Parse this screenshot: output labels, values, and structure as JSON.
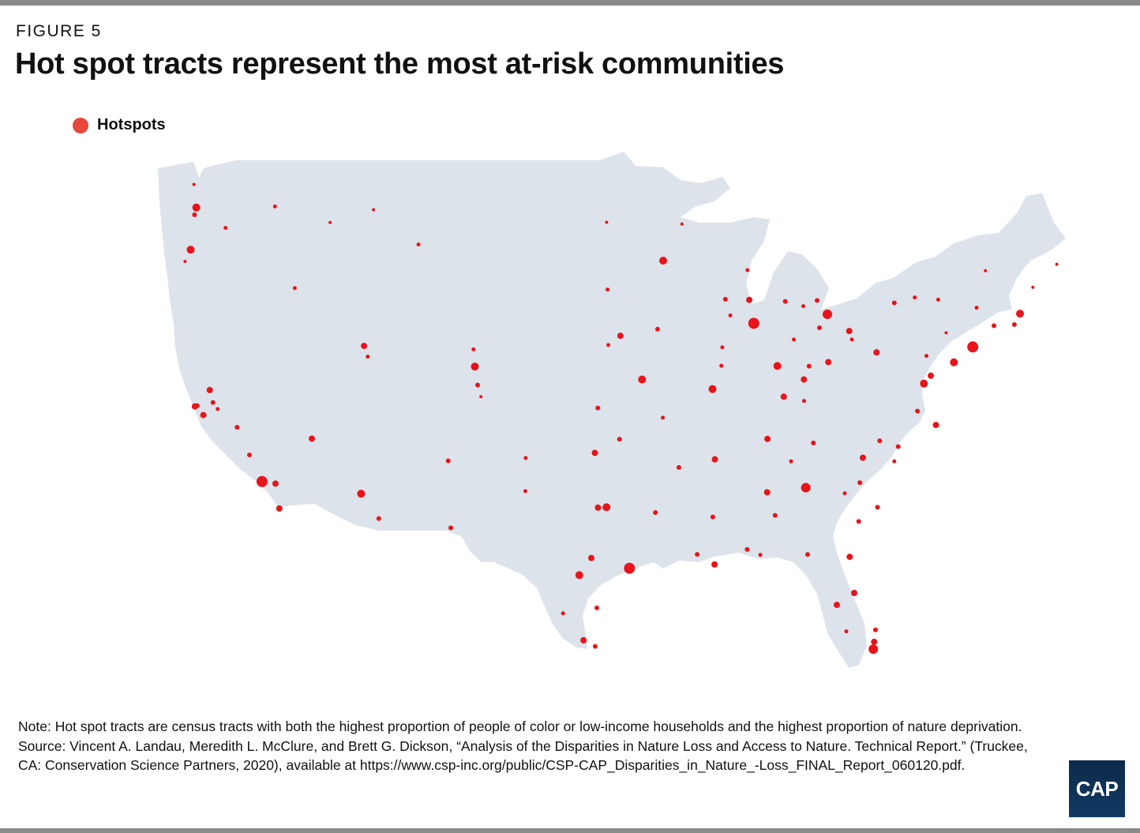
{
  "figure": {
    "label": "FIGURE 5",
    "title": "Hot spot tracts represent the most at-risk communities"
  },
  "legend": {
    "label": "Hotspots",
    "color": "#e8473b"
  },
  "map": {
    "land_color": "#dde3ea",
    "hotspot_color": "#e8141b",
    "hotspot_locations": [
      {
        "name": "Seattle",
        "lon": -122.33,
        "lat": 47.61,
        "r": 5
      },
      {
        "name": "Tacoma",
        "lon": -122.44,
        "lat": 47.25,
        "r": 3
      },
      {
        "name": "Bellingham",
        "lon": -122.48,
        "lat": 48.75,
        "r": 2
      },
      {
        "name": "Portland",
        "lon": -122.68,
        "lat": 45.52,
        "r": 5
      },
      {
        "name": "Salem",
        "lon": -123.03,
        "lat": 44.94,
        "r": 2
      },
      {
        "name": "Yakima",
        "lon": -120.51,
        "lat": 46.6,
        "r": 2.5
      },
      {
        "name": "Spokane",
        "lon": -117.43,
        "lat": 47.66,
        "r": 2.5
      },
      {
        "name": "Boise",
        "lon": -116.2,
        "lat": 43.62,
        "r": 2.5
      },
      {
        "name": "Missoula",
        "lon": -114.0,
        "lat": 46.87,
        "r": 2
      },
      {
        "name": "Great Falls",
        "lon": -111.3,
        "lat": 47.5,
        "r": 2
      },
      {
        "name": "Billings",
        "lon": -108.5,
        "lat": 45.78,
        "r": 2.5
      },
      {
        "name": "Salt Lake City",
        "lon": -111.89,
        "lat": 40.76,
        "r": 4
      },
      {
        "name": "Provo",
        "lon": -111.66,
        "lat": 40.23,
        "r": 2.5
      },
      {
        "name": "Denver",
        "lon": -104.99,
        "lat": 39.74,
        "r": 5
      },
      {
        "name": "Fort Collins",
        "lon": -105.08,
        "lat": 40.59,
        "r": 2.5
      },
      {
        "name": "Colorado Springs",
        "lon": -104.82,
        "lat": 38.83,
        "r": 3
      },
      {
        "name": "Pueblo",
        "lon": -104.61,
        "lat": 38.25,
        "r": 2
      },
      {
        "name": "San Francisco",
        "lon": -122.42,
        "lat": 37.77,
        "r": 4
      },
      {
        "name": "Oakland",
        "lon": -122.27,
        "lat": 37.8,
        "r": 3
      },
      {
        "name": "San Jose",
        "lon": -121.89,
        "lat": 37.34,
        "r": 4
      },
      {
        "name": "Sacramento",
        "lon": -121.49,
        "lat": 38.58,
        "r": 4
      },
      {
        "name": "Stockton",
        "lon": -121.29,
        "lat": 37.96,
        "r": 3
      },
      {
        "name": "Modesto",
        "lon": -121.0,
        "lat": 37.64,
        "r": 2.5
      },
      {
        "name": "Fresno",
        "lon": -119.79,
        "lat": 36.74,
        "r": 3
      },
      {
        "name": "Bakersfield",
        "lon": -119.02,
        "lat": 35.37,
        "r": 3
      },
      {
        "name": "Los Angeles",
        "lon": -118.24,
        "lat": 34.05,
        "r": 7
      },
      {
        "name": "Riverside",
        "lon": -117.4,
        "lat": 33.95,
        "r": 4
      },
      {
        "name": "San Diego",
        "lon": -117.16,
        "lat": 32.72,
        "r": 4
      },
      {
        "name": "Las Vegas",
        "lon": -115.14,
        "lat": 36.17,
        "r": 4
      },
      {
        "name": "Phoenix",
        "lon": -112.07,
        "lat": 33.45,
        "r": 5
      },
      {
        "name": "Tucson",
        "lon": -110.97,
        "lat": 32.22,
        "r": 3
      },
      {
        "name": "Albuquerque",
        "lon": -106.65,
        "lat": 35.08,
        "r": 3
      },
      {
        "name": "El Paso",
        "lon": -106.49,
        "lat": 31.76,
        "r": 3
      },
      {
        "name": "Minneapolis",
        "lon": -93.27,
        "lat": 44.98,
        "r": 5
      },
      {
        "name": "Duluth",
        "lon": -92.1,
        "lat": 46.79,
        "r": 2
      },
      {
        "name": "Fargo",
        "lon": -96.79,
        "lat": 46.88,
        "r": 2
      },
      {
        "name": "Sioux Falls",
        "lon": -96.73,
        "lat": 43.55,
        "r": 2.5
      },
      {
        "name": "Omaha",
        "lon": -95.93,
        "lat": 41.26,
        "r": 4
      },
      {
        "name": "Lincoln",
        "lon": -96.68,
        "lat": 40.81,
        "r": 2.5
      },
      {
        "name": "Des Moines",
        "lon": -93.62,
        "lat": 41.59,
        "r": 3
      },
      {
        "name": "Kansas City",
        "lon": -94.58,
        "lat": 39.1,
        "r": 5
      },
      {
        "name": "Wichita",
        "lon": -97.34,
        "lat": 37.69,
        "r": 3
      },
      {
        "name": "Oklahoma City",
        "lon": -97.52,
        "lat": 35.47,
        "r": 4
      },
      {
        "name": "Tulsa",
        "lon": -95.99,
        "lat": 36.15,
        "r": 3
      },
      {
        "name": "Dallas",
        "lon": -96.8,
        "lat": 32.78,
        "r": 5
      },
      {
        "name": "Fort Worth",
        "lon": -97.33,
        "lat": 32.76,
        "r": 4
      },
      {
        "name": "Austin",
        "lon": -97.74,
        "lat": 30.27,
        "r": 4
      },
      {
        "name": "San Antonio",
        "lon": -98.49,
        "lat": 29.42,
        "r": 5
      },
      {
        "name": "Houston",
        "lon": -95.37,
        "lat": 29.76,
        "r": 7
      },
      {
        "name": "Corpus Christi",
        "lon": -97.4,
        "lat": 27.8,
        "r": 3
      },
      {
        "name": "Laredo",
        "lon": -99.5,
        "lat": 27.53,
        "r": 2.5
      },
      {
        "name": "McAllen",
        "lon": -98.23,
        "lat": 26.2,
        "r": 4
      },
      {
        "name": "Brownsville",
        "lon": -97.5,
        "lat": 25.9,
        "r": 3
      },
      {
        "name": "Lubbock",
        "lon": -101.85,
        "lat": 33.58,
        "r": 2.5
      },
      {
        "name": "Amarillo",
        "lon": -101.83,
        "lat": 35.22,
        "r": 2.5
      },
      {
        "name": "Shreveport",
        "lon": -93.75,
        "lat": 32.52,
        "r": 3
      },
      {
        "name": "Baton Rouge",
        "lon": -91.15,
        "lat": 30.45,
        "r": 3
      },
      {
        "name": "New Orleans",
        "lon": -90.07,
        "lat": 29.95,
        "r": 4
      },
      {
        "name": "Jackson MS",
        "lon": -90.18,
        "lat": 32.3,
        "r": 3
      },
      {
        "name": "Little Rock",
        "lon": -92.29,
        "lat": 34.75,
        "r": 3
      },
      {
        "name": "Memphis",
        "lon": -90.05,
        "lat": 35.15,
        "r": 4
      },
      {
        "name": "Nashville",
        "lon": -86.78,
        "lat": 36.16,
        "r": 4
      },
      {
        "name": "Knoxville",
        "lon": -83.92,
        "lat": 35.96,
        "r": 3
      },
      {
        "name": "Chattanooga",
        "lon": -85.31,
        "lat": 35.05,
        "r": 2.5
      },
      {
        "name": "Birmingham",
        "lon": -86.8,
        "lat": 33.52,
        "r": 4
      },
      {
        "name": "Montgomery",
        "lon": -86.3,
        "lat": 32.38,
        "r": 3
      },
      {
        "name": "Mobile",
        "lon": -88.04,
        "lat": 30.69,
        "r": 3
      },
      {
        "name": "Atlanta",
        "lon": -84.39,
        "lat": 33.75,
        "r": 6
      },
      {
        "name": "Augusta",
        "lon": -81.97,
        "lat": 33.47,
        "r": 2.5
      },
      {
        "name": "Savannah",
        "lon": -81.1,
        "lat": 32.08,
        "r": 3
      },
      {
        "name": "Columbia SC",
        "lon": -81.03,
        "lat": 34.0,
        "r": 3
      },
      {
        "name": "Charleston",
        "lon": -79.93,
        "lat": 32.78,
        "r": 3
      },
      {
        "name": "Charlotte",
        "lon": -80.84,
        "lat": 35.23,
        "r": 4
      },
      {
        "name": "Greensboro",
        "lon": -79.79,
        "lat": 36.07,
        "r": 3
      },
      {
        "name": "Raleigh",
        "lon": -78.64,
        "lat": 35.78,
        "r": 3
      },
      {
        "name": "Fayetteville NC",
        "lon": -78.88,
        "lat": 35.05,
        "r": 2.5
      },
      {
        "name": "Richmond",
        "lon": -77.44,
        "lat": 37.54,
        "r": 3
      },
      {
        "name": "Norfolk",
        "lon": -76.29,
        "lat": 36.85,
        "r": 4
      },
      {
        "name": "Washington DC",
        "lon": -77.04,
        "lat": 38.9,
        "r": 5
      },
      {
        "name": "Baltimore",
        "lon": -76.61,
        "lat": 39.29,
        "r": 4
      },
      {
        "name": "Philadelphia",
        "lon": -75.17,
        "lat": 39.95,
        "r": 5
      },
      {
        "name": "New York",
        "lon": -74.0,
        "lat": 40.71,
        "r": 7
      },
      {
        "name": "Hartford",
        "lon": -72.68,
        "lat": 41.76,
        "r": 3
      },
      {
        "name": "Providence",
        "lon": -71.41,
        "lat": 41.82,
        "r": 3
      },
      {
        "name": "Boston",
        "lon": -71.06,
        "lat": 42.36,
        "r": 5
      },
      {
        "name": "Albany",
        "lon": -73.76,
        "lat": 42.65,
        "r": 2.5
      },
      {
        "name": "Syracuse",
        "lon": -76.15,
        "lat": 43.05,
        "r": 2.5
      },
      {
        "name": "Rochester",
        "lon": -77.61,
        "lat": 43.16,
        "r": 2.5
      },
      {
        "name": "Buffalo",
        "lon": -78.88,
        "lat": 42.89,
        "r": 3
      },
      {
        "name": "Burlington",
        "lon": -73.21,
        "lat": 44.48,
        "r": 2
      },
      {
        "name": "Portland ME",
        "lon": -70.26,
        "lat": 43.66,
        "r": 2
      },
      {
        "name": "Bangor",
        "lon": -68.77,
        "lat": 44.8,
        "r": 2
      },
      {
        "name": "Pittsburgh",
        "lon": -79.99,
        "lat": 40.44,
        "r": 4
      },
      {
        "name": "Harrisburg",
        "lon": -76.88,
        "lat": 40.27,
        "r": 2.5
      },
      {
        "name": "Scranton",
        "lon": -75.66,
        "lat": 41.41,
        "r": 2
      },
      {
        "name": "Cleveland",
        "lon": -81.69,
        "lat": 41.5,
        "r": 4
      },
      {
        "name": "Akron",
        "lon": -81.52,
        "lat": 41.08,
        "r": 2.5
      },
      {
        "name": "Toledo",
        "lon": -83.54,
        "lat": 41.66,
        "r": 3
      },
      {
        "name": "Columbus",
        "lon": -82.99,
        "lat": 39.96,
        "r": 4
      },
      {
        "name": "Dayton",
        "lon": -84.19,
        "lat": 39.76,
        "r": 3
      },
      {
        "name": "Cincinnati",
        "lon": -84.51,
        "lat": 39.1,
        "r": 4
      },
      {
        "name": "Louisville",
        "lon": -85.76,
        "lat": 38.25,
        "r": 4
      },
      {
        "name": "Lexington",
        "lon": -84.5,
        "lat": 38.04,
        "r": 2.5
      },
      {
        "name": "Indianapolis",
        "lon": -86.16,
        "lat": 39.77,
        "r": 5
      },
      {
        "name": "Fort Wayne",
        "lon": -85.14,
        "lat": 41.08,
        "r": 2.5
      },
      {
        "name": "Detroit",
        "lon": -83.05,
        "lat": 42.33,
        "r": 6
      },
      {
        "name": "Flint",
        "lon": -83.69,
        "lat": 43.01,
        "r": 3
      },
      {
        "name": "Lansing",
        "lon": -84.55,
        "lat": 42.73,
        "r": 2.5
      },
      {
        "name": "Grand Rapids",
        "lon": -85.67,
        "lat": 42.96,
        "r": 3
      },
      {
        "name": "Chicago",
        "lon": -87.63,
        "lat": 41.88,
        "r": 7
      },
      {
        "name": "Rockford",
        "lon": -89.09,
        "lat": 42.27,
        "r": 2.5
      },
      {
        "name": "Peoria",
        "lon": -89.59,
        "lat": 40.69,
        "r": 2.5
      },
      {
        "name": "Springfield IL",
        "lon": -89.65,
        "lat": 39.78,
        "r": 2.5
      },
      {
        "name": "Milwaukee",
        "lon": -87.91,
        "lat": 43.04,
        "r": 4
      },
      {
        "name": "Madison",
        "lon": -89.4,
        "lat": 43.07,
        "r": 3
      },
      {
        "name": "Green Bay",
        "lon": -88.02,
        "lat": 44.51,
        "r": 2.5
      },
      {
        "name": "St. Louis",
        "lon": -90.2,
        "lat": 38.63,
        "r": 5
      },
      {
        "name": "Springfield MO",
        "lon": -93.29,
        "lat": 37.21,
        "r": 2.5
      },
      {
        "name": "Jacksonville",
        "lon": -81.66,
        "lat": 30.33,
        "r": 4
      },
      {
        "name": "Tallahassee",
        "lon": -84.28,
        "lat": 30.44,
        "r": 3
      },
      {
        "name": "Orlando",
        "lon": -81.38,
        "lat": 28.54,
        "r": 4
      },
      {
        "name": "Tampa",
        "lon": -82.46,
        "lat": 27.95,
        "r": 4
      },
      {
        "name": "West Palm Beach",
        "lon": -80.05,
        "lat": 26.71,
        "r": 3
      },
      {
        "name": "Fort Lauderdale",
        "lon": -80.14,
        "lat": 26.12,
        "r": 4
      },
      {
        "name": "Miami",
        "lon": -80.19,
        "lat": 25.76,
        "r": 6
      },
      {
        "name": "Fort Myers",
        "lon": -81.87,
        "lat": 26.64,
        "r": 2.5
      },
      {
        "name": "Pensacola",
        "lon": -87.22,
        "lat": 30.42,
        "r": 2.5
      }
    ]
  },
  "notes": {
    "note": "Note: Hot spot tracts are census tracts with both the highest proportion of people of color or low-income households and the highest proportion of nature deprivation.",
    "source": "Source: Vincent A. Landau, Meredith L. McClure, and Brett G. Dickson, “Analysis of the Disparities in Nature Loss and Access to Nature. Technical Report.” (Truckee, CA: Conservation Science Partners, 2020), available at https://www.csp-inc.org/public/CSP-CAP_Disparities_in_Nature_-Loss_FINAL_Report_060120.pdf."
  },
  "logo": {
    "text": "CAP"
  }
}
